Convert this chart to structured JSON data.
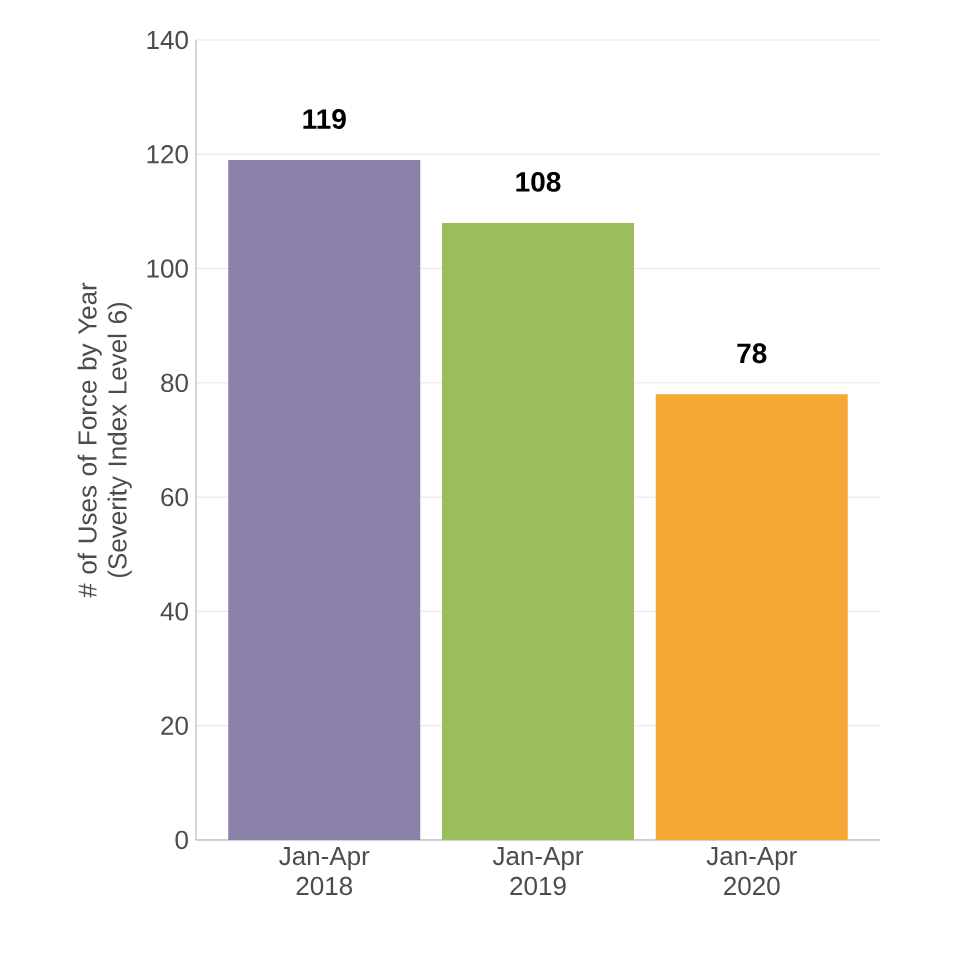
{
  "chart_data": {
    "type": "bar",
    "ylabel": "# of Uses of Force by Year (Severity Index Level 6)",
    "categories": [
      "Jan-Apr 2018",
      "Jan-Apr 2019",
      "Jan-Apr 2020"
    ],
    "values": [
      119,
      108,
      78
    ],
    "colors": [
      "#8a80a8",
      "#9cbd5e",
      "#f5a833"
    ],
    "value_labels": [
      "119",
      "108",
      "78"
    ],
    "ylim": [
      0,
      140
    ],
    "yticks": [
      0,
      20,
      40,
      60,
      80,
      100,
      120,
      140
    ],
    "grid": "y"
  }
}
